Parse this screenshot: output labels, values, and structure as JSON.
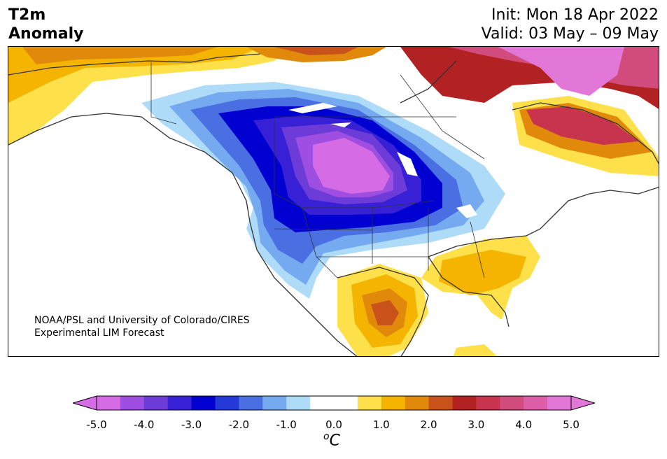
{
  "header": {
    "title_line1": "T2m",
    "title_line2": "Anomaly",
    "init": "Init: Mon 18 Apr 2022",
    "valid": "Valid: 03 May – 09 May"
  },
  "credit": {
    "line1": "NOAA/PSL and University of Colorado/CIRES",
    "line2": "Experimental LIM Forecast"
  },
  "colorbar": {
    "ticks": [
      "-5.0",
      "-4.0",
      "-3.0",
      "-2.0",
      "-1.0",
      "0.0",
      "1.0",
      "2.0",
      "3.0",
      "4.0",
      "5.0"
    ],
    "unit_prefix": "o",
    "unit": "C",
    "colors": [
      "#d66be6",
      "#9e4ee0",
      "#6d3bd8",
      "#3820d6",
      "#0000d0",
      "#2439d8",
      "#4a6fe3",
      "#76aaf0",
      "#aedbf8",
      "#ffffff",
      "#ffffff",
      "#fde04a",
      "#f4b400",
      "#e0890a",
      "#c8521a",
      "#b22222",
      "#c8334d",
      "#d14c7c",
      "#dc5fa8",
      "#e377d8"
    ],
    "under_color": "#d66be6",
    "over_color": "#e377d8"
  }
}
